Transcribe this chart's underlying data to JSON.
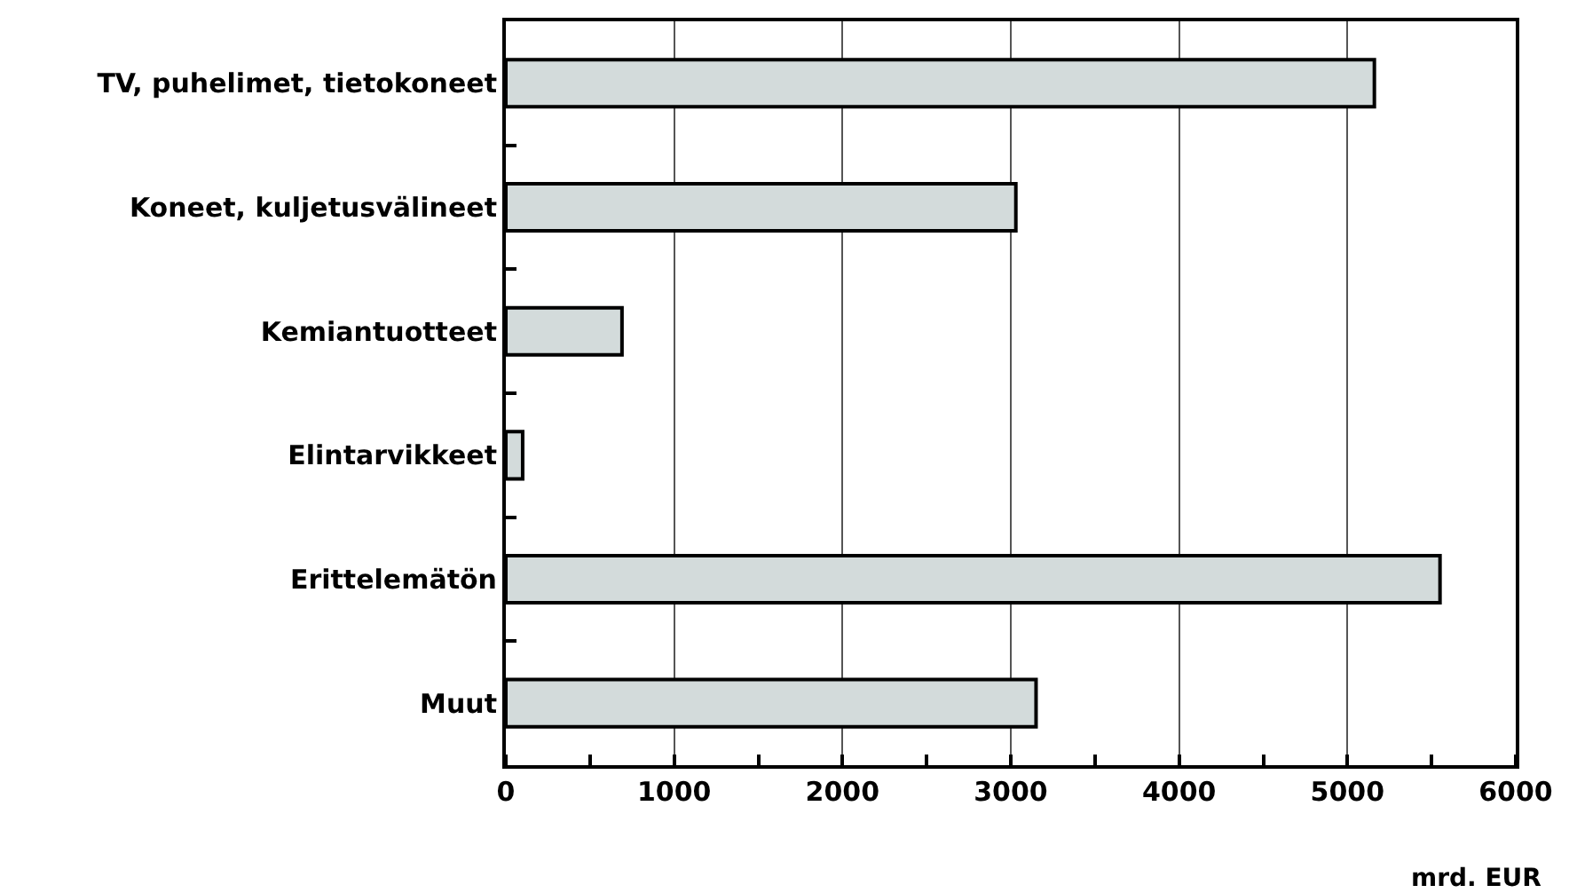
{
  "chart_data": {
    "type": "bar",
    "orientation": "horizontal",
    "xlabel": "mrd. EUR",
    "categories": [
      "TV, puhelimet, tietokoneet",
      "Koneet, kuljetusvälineet",
      "Kemiantuotteet",
      "Elintarvikkeet",
      "Erittelemätön",
      "Muut"
    ],
    "values": [
      5160,
      3030,
      690,
      100,
      5550,
      3150
    ],
    "color": "#d3dbdb",
    "xlim": [
      0,
      6000
    ],
    "xticks": [
      0,
      {
        "value": 500,
        "label": null
      },
      1000,
      {
        "value": 1500,
        "label": null
      },
      2000,
      {
        "value": 2500,
        "label": null
      },
      3000,
      {
        "value": 3500,
        "label": null
      },
      4000,
      {
        "value": 4500,
        "label": null
      },
      5000,
      {
        "value": 5500,
        "label": null
      },
      6000
    ],
    "grid": "x",
    "legend": false
  }
}
